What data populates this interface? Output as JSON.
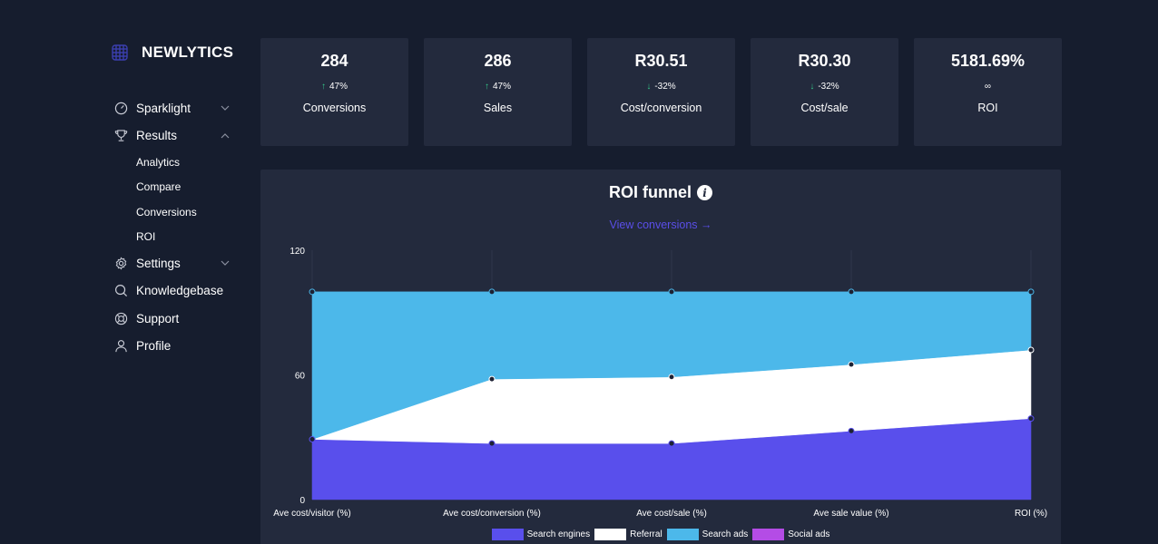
{
  "brand": {
    "name": "NEWLYTICS",
    "icon": "brand-grid-icon"
  },
  "sidebar": {
    "items": [
      {
        "label": "Sparklight",
        "icon": "gauge-icon",
        "chevron": "down"
      },
      {
        "label": "Results",
        "icon": "trophy-icon",
        "chevron": "up",
        "children": [
          "Analytics",
          "Compare",
          "Conversions",
          "ROI"
        ]
      },
      {
        "label": "Settings",
        "icon": "gear-icon",
        "chevron": "down"
      },
      {
        "label": "Knowledgebase",
        "icon": "search-icon"
      },
      {
        "label": "Support",
        "icon": "lifebuoy-icon"
      },
      {
        "label": "Profile",
        "icon": "user-icon"
      }
    ]
  },
  "kpis": [
    {
      "value": "284",
      "delta": "47%",
      "direction": "up",
      "label": "Conversions"
    },
    {
      "value": "286",
      "delta": "47%",
      "direction": "up",
      "label": "Sales"
    },
    {
      "value": "R30.51",
      "delta": "-32%",
      "direction": "down",
      "label": "Cost/conversion"
    },
    {
      "value": "R30.30",
      "delta": "-32%",
      "direction": "down",
      "label": "Cost/sale"
    },
    {
      "value": "5181.69%",
      "delta": "∞",
      "direction": "none",
      "label": "ROI"
    }
  ],
  "funnel": {
    "title": "ROI funnel",
    "info_icon": "info-icon",
    "link": "View conversions →"
  },
  "chart_data": {
    "type": "area",
    "stacked": true,
    "categories": [
      "Ave cost/visitor (%)",
      "Ave cost/conversion (%)",
      "Ave cost/sale (%)",
      "Ave sale value (%)",
      "ROI (%)"
    ],
    "ylim": [
      0,
      120
    ],
    "yticks": [
      0,
      60,
      120
    ],
    "grid": "vertical",
    "legend_position": "bottom",
    "series": [
      {
        "name": "Search engines",
        "color": "#594fec",
        "values": [
          29,
          27,
          27,
          33,
          39
        ]
      },
      {
        "name": "Referral",
        "color": "#ffffff",
        "values": [
          0,
          31,
          32,
          32,
          33
        ]
      },
      {
        "name": "Search ads",
        "color": "#4cb8ea",
        "values": [
          71,
          42,
          41,
          35,
          28
        ]
      },
      {
        "name": "Social ads",
        "color": "#b44ce6",
        "values": [
          0,
          0,
          0,
          0,
          0
        ]
      }
    ]
  }
}
